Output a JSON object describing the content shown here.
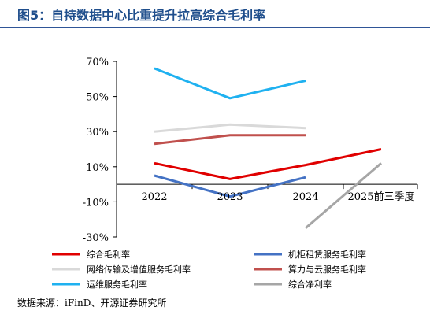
{
  "figure": {
    "title": "图5：自持数据中心比重提升拉高综合毛利率",
    "source": "数据来源：iFinD、开源证券研究所"
  },
  "chart_data": {
    "type": "line",
    "categories": [
      "2022",
      "2023",
      "2024",
      "2025前三季度"
    ],
    "y_ticks": [
      "70%",
      "50%",
      "30%",
      "10%",
      "-10%",
      "-30%"
    ],
    "ylim": [
      -30,
      70
    ],
    "grid": false,
    "legend_position": "bottom",
    "series": [
      {
        "name": "综合毛利率",
        "color": "#e00000",
        "values": [
          12,
          3,
          11,
          20
        ]
      },
      {
        "name": "机柜租赁服务毛利率",
        "color": "#4472c4",
        "values": [
          5,
          -7,
          4,
          null
        ]
      },
      {
        "name": "网络传输及增值服务毛利率",
        "color": "#d9d9d9",
        "values": [
          30,
          34,
          32,
          null
        ]
      },
      {
        "name": "算力与云服务毛利率",
        "color": "#c0504d",
        "values": [
          23,
          28,
          28,
          null
        ]
      },
      {
        "name": "运维服务毛利率",
        "color": "#1fb1f0",
        "values": [
          66,
          49,
          59,
          null
        ]
      },
      {
        "name": "综合净利率",
        "color": "#a6a6a6",
        "values": [
          null,
          null,
          -25,
          12
        ]
      }
    ]
  }
}
